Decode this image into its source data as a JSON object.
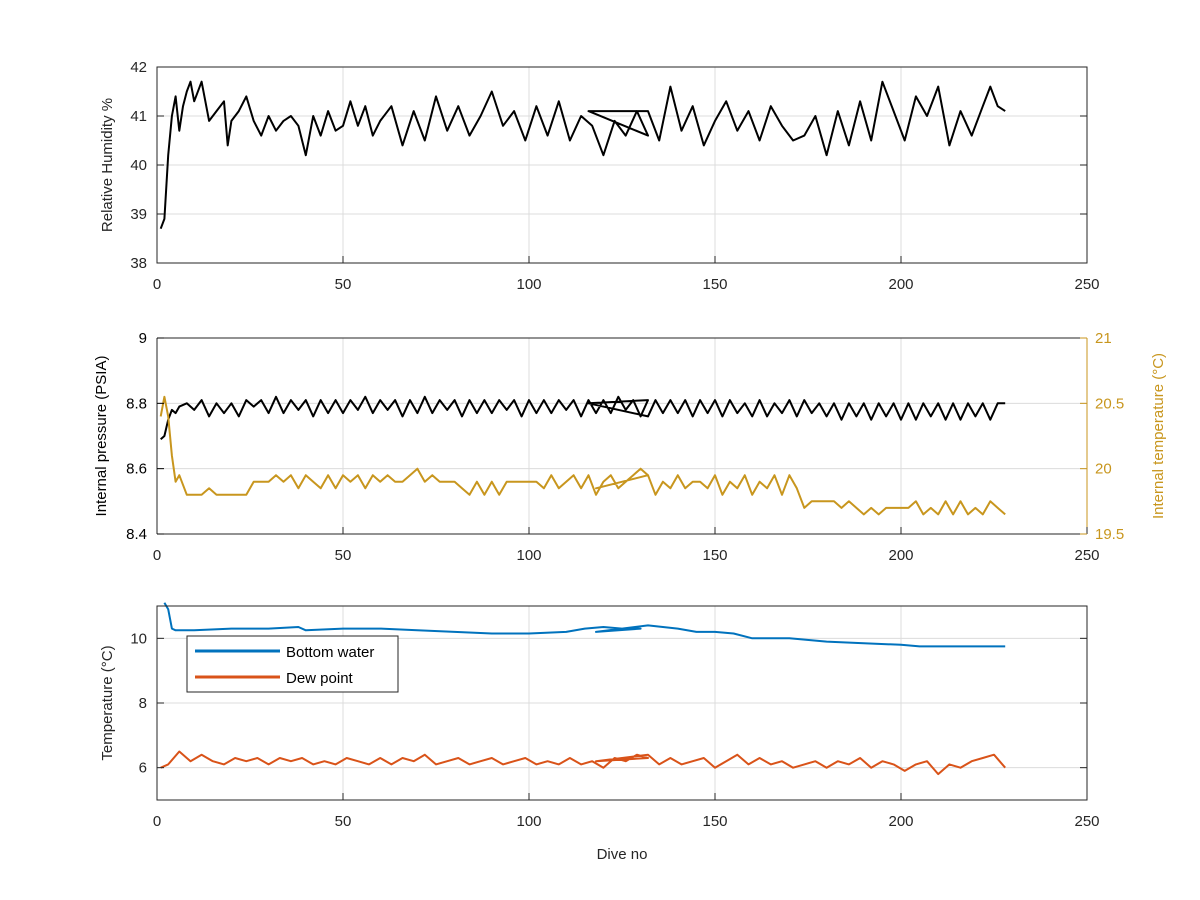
{
  "figure": {
    "xlabel": "Dive no"
  },
  "chart_data": [
    {
      "type": "line",
      "xlabel": "",
      "ylabel": "Relative Humidity %",
      "xlim": [
        0,
        250
      ],
      "ylim": [
        38,
        42
      ],
      "xticks": [
        0,
        50,
        100,
        150,
        200,
        250
      ],
      "yticks": [
        38,
        39,
        40,
        41,
        42
      ],
      "grid": true,
      "series": [
        {
          "name": "",
          "color": "#000000",
          "axis": "left",
          "x": [
            1,
            2,
            3,
            4,
            5,
            6,
            7,
            8,
            9,
            10,
            12,
            14,
            16,
            18,
            19,
            20,
            22,
            24,
            26,
            28,
            30,
            32,
            34,
            36,
            38,
            40,
            42,
            44,
            46,
            48,
            50,
            52,
            54,
            56,
            58,
            60,
            63,
            66,
            69,
            72,
            75,
            78,
            81,
            84,
            87,
            90,
            93,
            96,
            99,
            102,
            105,
            108,
            111,
            114,
            117,
            120,
            123,
            126,
            129,
            132,
            116,
            132,
            135,
            138,
            141,
            144,
            147,
            150,
            153,
            156,
            159,
            162,
            165,
            168,
            171,
            174,
            177,
            180,
            183,
            186,
            189,
            192,
            195,
            198,
            201,
            204,
            207,
            210,
            213,
            216,
            219,
            222,
            224,
            226,
            228
          ],
          "y": [
            38.7,
            38.9,
            40.2,
            41.0,
            41.4,
            40.7,
            41.2,
            41.5,
            41.7,
            41.3,
            41.7,
            40.9,
            41.1,
            41.3,
            40.4,
            40.9,
            41.1,
            41.4,
            40.9,
            40.6,
            41.0,
            40.7,
            40.9,
            41.0,
            40.8,
            40.2,
            41.0,
            40.6,
            41.1,
            40.7,
            40.8,
            41.3,
            40.8,
            41.2,
            40.6,
            40.9,
            41.2,
            40.4,
            41.1,
            40.5,
            41.4,
            40.7,
            41.2,
            40.6,
            41.0,
            41.5,
            40.8,
            41.1,
            40.5,
            41.2,
            40.6,
            41.3,
            40.5,
            41.0,
            40.8,
            40.2,
            40.9,
            40.6,
            41.1,
            40.6,
            41.1,
            41.1,
            40.5,
            41.6,
            40.7,
            41.2,
            40.4,
            40.9,
            41.3,
            40.7,
            41.1,
            40.5,
            41.2,
            40.8,
            40.5,
            40.6,
            41.0,
            40.2,
            41.1,
            40.4,
            41.3,
            40.5,
            41.7,
            41.1,
            40.5,
            41.4,
            41.0,
            41.6,
            40.4,
            41.1,
            40.6,
            41.2,
            41.6,
            41.2,
            41.1
          ]
        }
      ]
    },
    {
      "type": "line",
      "xlabel": "",
      "ylabel": "Internal pressure (PSIA)",
      "ylabel_right": "Internal temperature (°C)",
      "xlim": [
        0,
        250
      ],
      "ylim": [
        8.4,
        9
      ],
      "ylim_right": [
        19.5,
        21
      ],
      "xticks": [
        0,
        50,
        100,
        150,
        200,
        250
      ],
      "yticks": [
        8.4,
        8.6,
        8.8,
        9
      ],
      "yticks_right": [
        19.5,
        20,
        20.5,
        21
      ],
      "grid": true,
      "series": [
        {
          "name": "",
          "color": "#000000",
          "axis": "left",
          "x": [
            1,
            2,
            3,
            4,
            5,
            6,
            8,
            10,
            12,
            14,
            16,
            18,
            20,
            22,
            24,
            26,
            28,
            30,
            32,
            34,
            36,
            38,
            40,
            42,
            44,
            46,
            48,
            50,
            52,
            54,
            56,
            58,
            60,
            62,
            64,
            66,
            68,
            70,
            72,
            74,
            76,
            78,
            80,
            82,
            84,
            86,
            88,
            90,
            92,
            94,
            96,
            98,
            100,
            102,
            104,
            106,
            108,
            110,
            112,
            114,
            116,
            118,
            120,
            122,
            124,
            126,
            128,
            130,
            132,
            116,
            132,
            134,
            136,
            138,
            140,
            142,
            144,
            146,
            148,
            150,
            152,
            154,
            156,
            158,
            160,
            162,
            164,
            166,
            168,
            170,
            172,
            174,
            176,
            178,
            180,
            182,
            184,
            186,
            188,
            190,
            192,
            194,
            196,
            198,
            200,
            202,
            204,
            206,
            208,
            210,
            212,
            214,
            216,
            218,
            220,
            222,
            224,
            226,
            228
          ],
          "y": [
            8.69,
            8.7,
            8.75,
            8.78,
            8.77,
            8.79,
            8.8,
            8.78,
            8.81,
            8.76,
            8.8,
            8.77,
            8.8,
            8.76,
            8.81,
            8.79,
            8.81,
            8.77,
            8.82,
            8.77,
            8.81,
            8.78,
            8.81,
            8.76,
            8.81,
            8.77,
            8.81,
            8.77,
            8.81,
            8.78,
            8.82,
            8.77,
            8.81,
            8.78,
            8.81,
            8.76,
            8.81,
            8.77,
            8.82,
            8.77,
            8.81,
            8.78,
            8.81,
            8.76,
            8.81,
            8.77,
            8.81,
            8.77,
            8.81,
            8.78,
            8.81,
            8.76,
            8.81,
            8.77,
            8.81,
            8.77,
            8.81,
            8.78,
            8.81,
            8.76,
            8.81,
            8.77,
            8.81,
            8.77,
            8.82,
            8.78,
            8.81,
            8.76,
            8.81,
            8.8,
            8.76,
            8.81,
            8.77,
            8.81,
            8.77,
            8.81,
            8.76,
            8.81,
            8.77,
            8.81,
            8.76,
            8.81,
            8.77,
            8.8,
            8.76,
            8.81,
            8.76,
            8.8,
            8.77,
            8.81,
            8.76,
            8.81,
            8.77,
            8.8,
            8.76,
            8.8,
            8.75,
            8.8,
            8.76,
            8.8,
            8.75,
            8.8,
            8.76,
            8.8,
            8.75,
            8.8,
            8.75,
            8.8,
            8.76,
            8.8,
            8.75,
            8.8,
            8.75,
            8.8,
            8.76,
            8.8,
            8.75,
            8.8,
            8.8
          ]
        },
        {
          "name": "",
          "color": "#c8961e",
          "axis": "right",
          "x": [
            1,
            2,
            3,
            4,
            5,
            6,
            8,
            10,
            12,
            14,
            16,
            18,
            20,
            22,
            24,
            26,
            28,
            30,
            32,
            34,
            36,
            38,
            40,
            42,
            44,
            46,
            48,
            50,
            52,
            54,
            56,
            58,
            60,
            62,
            64,
            66,
            68,
            70,
            72,
            74,
            76,
            78,
            80,
            82,
            84,
            86,
            88,
            90,
            92,
            94,
            96,
            98,
            100,
            102,
            104,
            106,
            108,
            110,
            112,
            114,
            116,
            118,
            120,
            122,
            124,
            126,
            128,
            130,
            132,
            118,
            132,
            134,
            136,
            138,
            140,
            142,
            144,
            146,
            148,
            150,
            152,
            154,
            156,
            158,
            160,
            162,
            164,
            166,
            168,
            170,
            172,
            174,
            176,
            178,
            180,
            182,
            184,
            186,
            188,
            190,
            192,
            194,
            196,
            198,
            200,
            202,
            204,
            206,
            208,
            210,
            212,
            214,
            216,
            218,
            220,
            222,
            224,
            226,
            228
          ],
          "y": [
            20.4,
            20.55,
            20.4,
            20.1,
            19.9,
            19.95,
            19.8,
            19.8,
            19.8,
            19.85,
            19.8,
            19.8,
            19.8,
            19.8,
            19.8,
            19.9,
            19.9,
            19.9,
            19.95,
            19.9,
            19.95,
            19.85,
            19.95,
            19.9,
            19.85,
            19.95,
            19.85,
            19.95,
            19.9,
            19.95,
            19.85,
            19.95,
            19.9,
            19.95,
            19.9,
            19.9,
            19.95,
            20.0,
            19.9,
            19.95,
            19.9,
            19.9,
            19.9,
            19.85,
            19.8,
            19.9,
            19.8,
            19.9,
            19.8,
            19.9,
            19.9,
            19.9,
            19.9,
            19.9,
            19.85,
            19.95,
            19.85,
            19.9,
            19.95,
            19.85,
            19.95,
            19.8,
            19.9,
            19.95,
            19.85,
            19.9,
            19.95,
            20.0,
            19.95,
            19.85,
            19.95,
            19.8,
            19.9,
            19.85,
            19.95,
            19.85,
            19.9,
            19.9,
            19.85,
            19.95,
            19.8,
            19.9,
            19.85,
            19.95,
            19.8,
            19.9,
            19.85,
            19.95,
            19.8,
            19.95,
            19.85,
            19.7,
            19.75,
            19.75,
            19.75,
            19.75,
            19.7,
            19.75,
            19.7,
            19.65,
            19.7,
            19.65,
            19.7,
            19.7,
            19.7,
            19.7,
            19.75,
            19.65,
            19.7,
            19.65,
            19.75,
            19.65,
            19.75,
            19.65,
            19.7,
            19.65,
            19.75,
            19.7,
            19.65
          ]
        }
      ]
    },
    {
      "type": "line",
      "xlabel": "Dive no",
      "ylabel": "Temperature (°C)",
      "xlim": [
        0,
        250
      ],
      "ylim": [
        5,
        11
      ],
      "xticks": [
        0,
        50,
        100,
        150,
        200,
        250
      ],
      "yticks": [
        6,
        8,
        10
      ],
      "grid": true,
      "legend": "top-left",
      "series": [
        {
          "name": "Bottom water",
          "color": "#0072bd",
          "axis": "left",
          "x": [
            2,
            3,
            4,
            5,
            10,
            20,
            30,
            38,
            40,
            50,
            60,
            70,
            80,
            90,
            100,
            110,
            115,
            120,
            125,
            130,
            118,
            132,
            140,
            145,
            150,
            155,
            160,
            170,
            180,
            190,
            200,
            205,
            210,
            215,
            220,
            228
          ],
          "y": [
            11.1,
            10.9,
            10.3,
            10.25,
            10.25,
            10.3,
            10.3,
            10.35,
            10.25,
            10.3,
            10.3,
            10.25,
            10.2,
            10.15,
            10.15,
            10.2,
            10.3,
            10.35,
            10.3,
            10.3,
            10.2,
            10.4,
            10.3,
            10.2,
            10.2,
            10.15,
            10.0,
            10.0,
            9.9,
            9.85,
            9.8,
            9.75,
            9.75,
            9.75,
            9.75,
            9.75
          ]
        },
        {
          "name": "Dew point",
          "color": "#d95319",
          "axis": "left",
          "x": [
            1,
            3,
            6,
            9,
            12,
            15,
            18,
            21,
            24,
            27,
            30,
            33,
            36,
            39,
            42,
            45,
            48,
            51,
            54,
            57,
            60,
            63,
            66,
            69,
            72,
            75,
            78,
            81,
            84,
            87,
            90,
            93,
            96,
            99,
            102,
            105,
            108,
            111,
            114,
            117,
            120,
            123,
            126,
            129,
            132,
            118,
            132,
            135,
            138,
            141,
            144,
            147,
            150,
            153,
            156,
            159,
            162,
            165,
            168,
            171,
            174,
            177,
            180,
            183,
            186,
            189,
            192,
            195,
            198,
            201,
            204,
            207,
            210,
            213,
            216,
            219,
            222,
            225,
            228
          ],
          "y": [
            6.0,
            6.1,
            6.5,
            6.2,
            6.4,
            6.2,
            6.1,
            6.3,
            6.2,
            6.3,
            6.1,
            6.3,
            6.2,
            6.3,
            6.1,
            6.2,
            6.1,
            6.3,
            6.2,
            6.1,
            6.3,
            6.1,
            6.3,
            6.2,
            6.4,
            6.1,
            6.2,
            6.3,
            6.1,
            6.2,
            6.3,
            6.1,
            6.2,
            6.3,
            6.1,
            6.2,
            6.1,
            6.3,
            6.1,
            6.2,
            6.0,
            6.3,
            6.2,
            6.4,
            6.3,
            6.2,
            6.4,
            6.1,
            6.3,
            6.1,
            6.2,
            6.3,
            6.0,
            6.2,
            6.4,
            6.1,
            6.3,
            6.1,
            6.2,
            6.0,
            6.1,
            6.2,
            6.0,
            6.2,
            6.1,
            6.3,
            6.0,
            6.2,
            6.1,
            5.9,
            6.1,
            6.2,
            5.8,
            6.1,
            6.0,
            6.2,
            6.3,
            6.4,
            6.0
          ]
        }
      ]
    }
  ]
}
